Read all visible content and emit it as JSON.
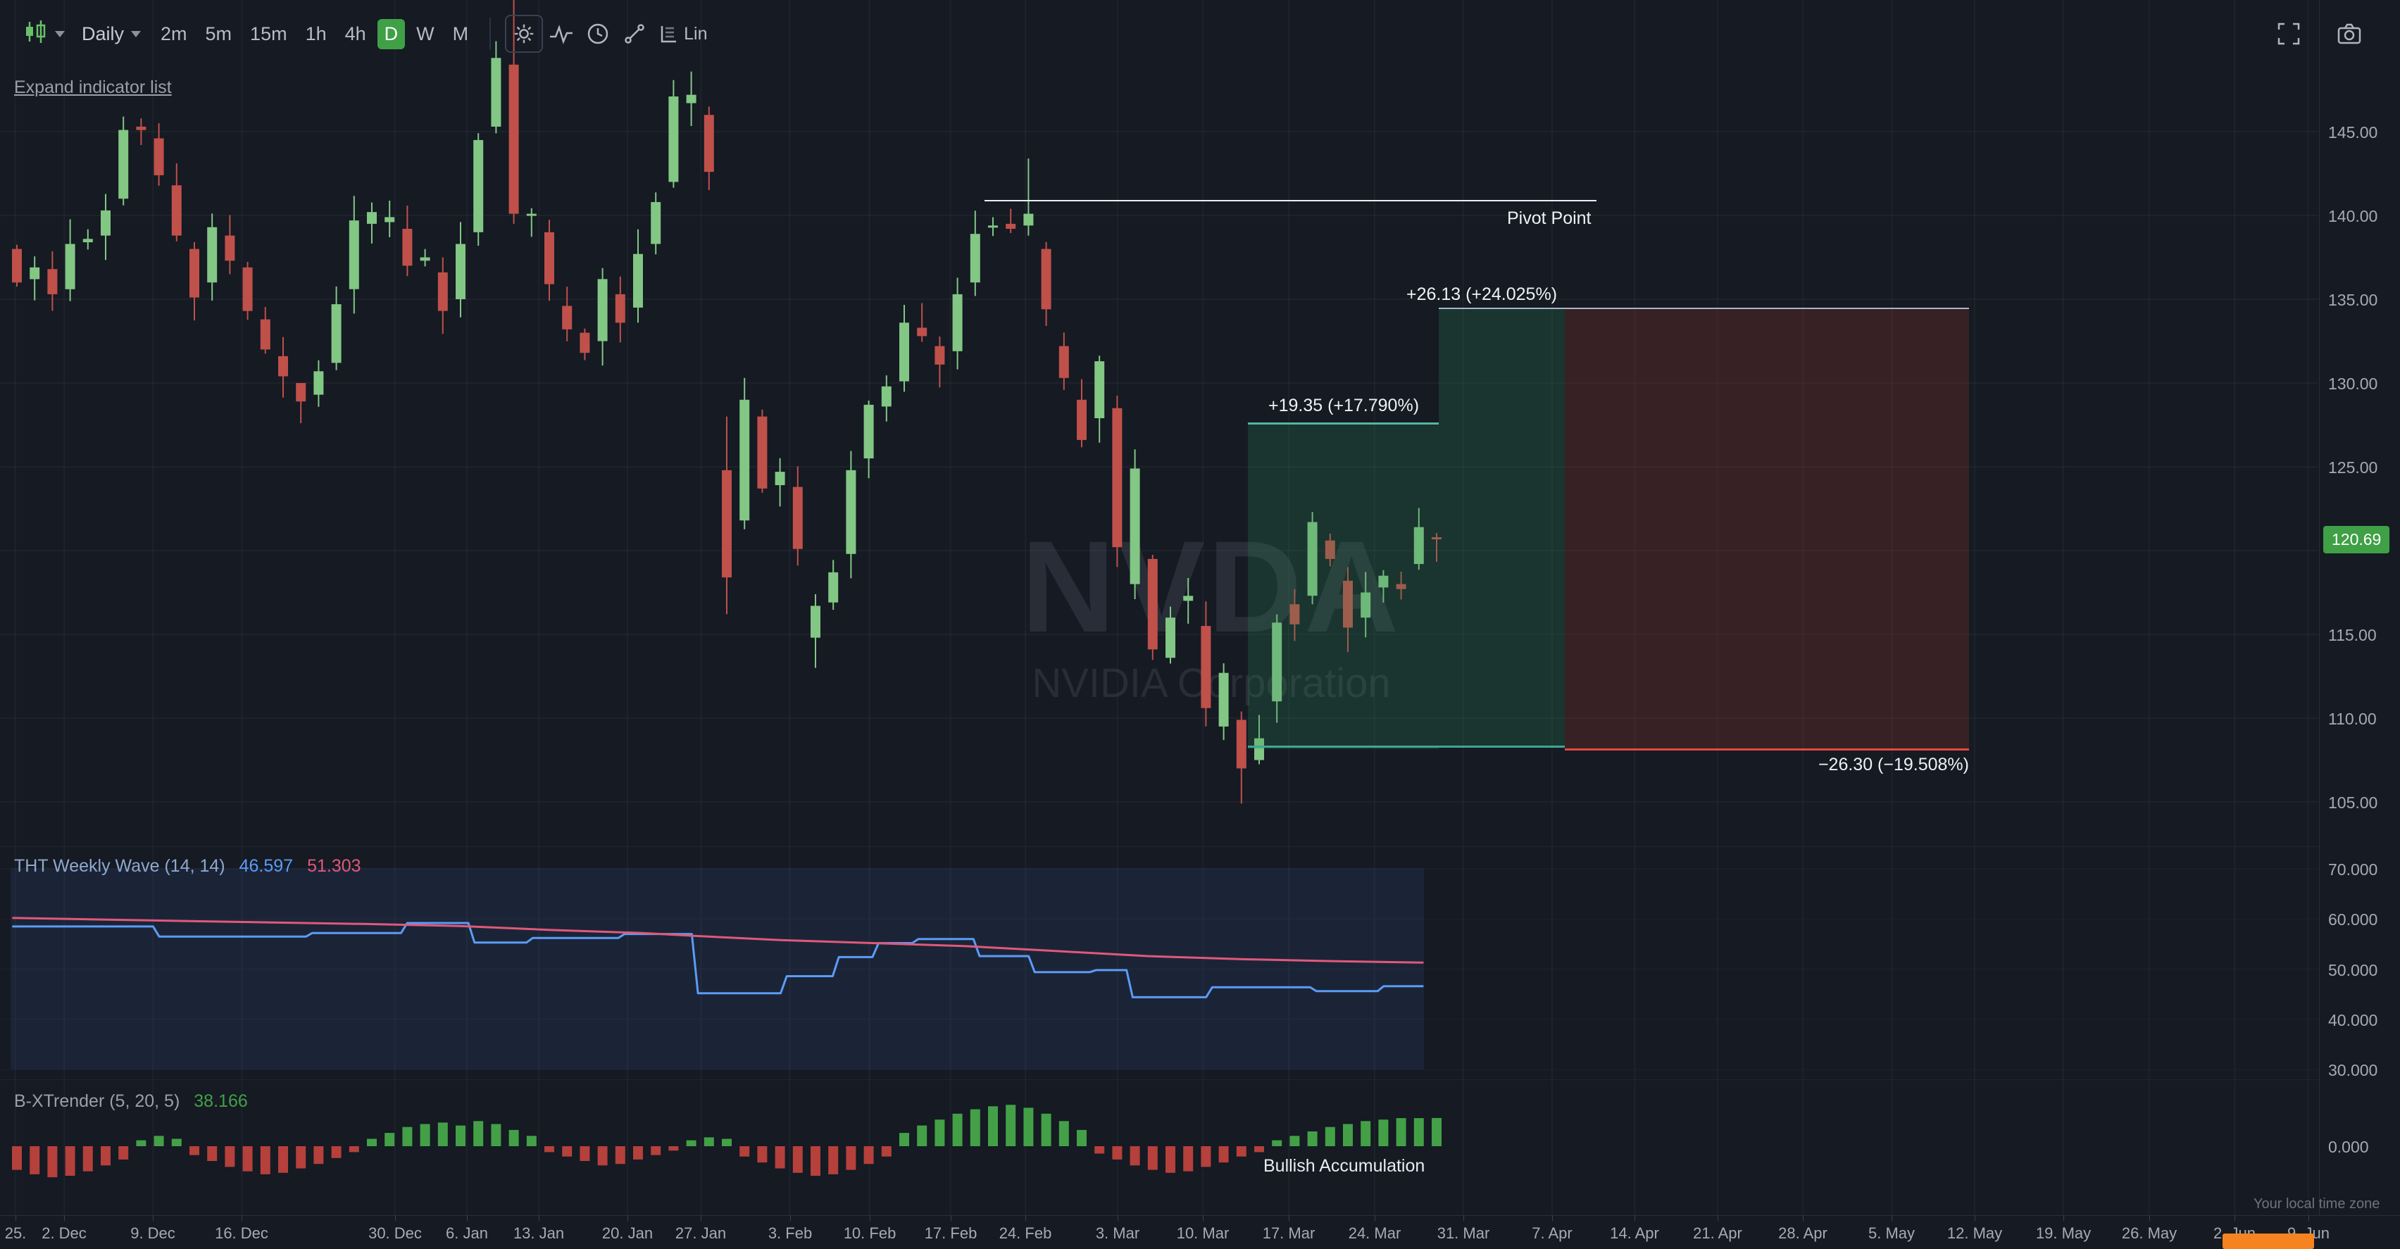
{
  "colors": {
    "up": "#82c784",
    "down": "#c0504a",
    "badge": "#3fa046",
    "wave": "#5b9cf6",
    "signal": "#e0597a",
    "bxt_up": "#43a047",
    "bxt_down": "#b5403c",
    "profit_fill": "rgba(46,139,87,0.24)",
    "loss_fill": "rgba(160,55,48,0.26)",
    "grid": "rgba(140,147,162,0.07)"
  },
  "toolbar": {
    "interval_select": {
      "value": "Daily"
    },
    "intervals": [
      {
        "label": "2m"
      },
      {
        "label": "5m"
      },
      {
        "label": "15m"
      },
      {
        "label": "1h"
      },
      {
        "label": "4h"
      },
      {
        "label": "D",
        "active": true
      },
      {
        "label": "W"
      },
      {
        "label": "M"
      }
    ],
    "scale_button": {
      "label": "Lin"
    }
  },
  "expand_link": "Expand indicator list",
  "watermark": {
    "ticker": "NVDA",
    "name": "NVIDIA Corporation"
  },
  "drawings": {
    "pivot_label": "Pivot Point",
    "profit_small_label": "+19.35 (+17.790%)",
    "profit_large_label": "+26.13 (+24.025%)",
    "loss_label": "−26.30 (−19.508%)"
  },
  "price_axis": {
    "labels": [
      [
        "145.00",
        145
      ],
      [
        "140.00",
        140
      ],
      [
        "135.00",
        135
      ],
      [
        "130.00",
        130
      ],
      [
        "125.00",
        125
      ],
      [
        "115.00",
        115
      ],
      [
        "110.00",
        110
      ],
      [
        "105.00",
        105
      ]
    ],
    "last_price_badge": "120.69"
  },
  "panels": {
    "tht": {
      "title": "THT Weekly Wave (14, 14)",
      "value_wave": "46.597",
      "value_signal": "51.303",
      "axis_labels": [
        [
          "70.000",
          70
        ],
        [
          "60.000",
          60
        ],
        [
          "50.000",
          50
        ],
        [
          "40.000",
          40
        ],
        [
          "30.000",
          30
        ]
      ]
    },
    "bxt": {
      "title": "B-XTrender (5, 20, 5)",
      "value": "38.166",
      "annotation": "Bullish Accumulation",
      "axis_labels": [
        [
          "0.000",
          0
        ]
      ]
    }
  },
  "time_axis": {
    "labels": [
      [
        "25.",
        10
      ],
      [
        "2. Dec",
        42
      ],
      [
        "9. Dec",
        100
      ],
      [
        "16. Dec",
        158
      ],
      [
        "30. Dec",
        258
      ],
      [
        "6. Jan",
        305
      ],
      [
        "13. Jan",
        352
      ],
      [
        "20. Jan",
        410
      ],
      [
        "27. Jan",
        458
      ],
      [
        "3. Feb",
        516
      ],
      [
        "10. Feb",
        568
      ],
      [
        "17. Feb",
        621
      ],
      [
        "24. Feb",
        670
      ],
      [
        "3. Mar",
        730
      ],
      [
        "10. Mar",
        786
      ],
      [
        "17. Mar",
        842
      ],
      [
        "24. Mar",
        898
      ],
      [
        "31. Mar",
        956
      ],
      [
        "7. Apr",
        1014
      ],
      [
        "14. Apr",
        1068
      ],
      [
        "21. Apr",
        1122
      ],
      [
        "28. Apr",
        1178
      ],
      [
        "5. May",
        1236
      ],
      [
        "12. May",
        1290
      ],
      [
        "19. May",
        1348
      ],
      [
        "26. May",
        1404
      ],
      [
        "2. Jun",
        1460
      ],
      [
        "9. Jun",
        1508
      ]
    ],
    "timezone_note": "Your local time zone"
  },
  "chart_data": [
    {
      "type": "candlestick",
      "name": "NVDA Daily",
      "last_price": 120.69,
      "ylim": [
        103,
        153
      ],
      "candles": [
        [
          138.0,
          136.0
        ],
        [
          136.2,
          136.9
        ],
        [
          136.8,
          135.3
        ],
        [
          135.6,
          138.3
        ],
        [
          138.4,
          138.6
        ],
        [
          138.8,
          140.3
        ],
        [
          141.0,
          145.1,
          145.9,
          140.6
        ],
        [
          145.3,
          145.1
        ],
        [
          144.6,
          142.4
        ],
        [
          141.8,
          138.8
        ],
        [
          138.0,
          135.1
        ],
        [
          136.0,
          139.3
        ],
        [
          138.8,
          137.3
        ],
        [
          136.9,
          134.3
        ],
        [
          133.8,
          132.0
        ],
        [
          131.6,
          130.4
        ],
        [
          130.0,
          128.9,
          129.6,
          127.6
        ],
        [
          129.3,
          130.7
        ],
        [
          131.2,
          134.7
        ],
        [
          135.6,
          139.7
        ],
        [
          139.5,
          140.2
        ],
        [
          139.6,
          139.9
        ],
        [
          139.2,
          137.0
        ],
        [
          137.3,
          137.5
        ],
        [
          136.6,
          134.3
        ],
        [
          135.0,
          138.3
        ],
        [
          139.0,
          144.5
        ],
        [
          145.3,
          149.4,
          150.4,
          144.9
        ],
        [
          149.0,
          140.1,
          153.2,
          139.5
        ],
        [
          140.0,
          140.1
        ],
        [
          139.0,
          135.9
        ],
        [
          134.6,
          133.2
        ],
        [
          133.0,
          131.8
        ],
        [
          132.5,
          136.2
        ],
        [
          135.3,
          133.6
        ],
        [
          134.5,
          137.7
        ],
        [
          138.3,
          140.8
        ],
        [
          142.0,
          147.1
        ],
        [
          146.7,
          147.2
        ],
        [
          146.0,
          142.6
        ],
        [
          124.8,
          118.4,
          128.0,
          116.2
        ],
        [
          121.8,
          129.0
        ],
        [
          128.0,
          123.7
        ],
        [
          123.9,
          124.7
        ],
        [
          123.8,
          120.1
        ],
        [
          114.8,
          116.7,
          117.4,
          113.0
        ],
        [
          116.9,
          118.7
        ],
        [
          119.8,
          124.8
        ],
        [
          125.5,
          128.7
        ],
        [
          128.6,
          129.8
        ],
        [
          130.1,
          133.6
        ],
        [
          133.3,
          132.8
        ],
        [
          132.2,
          131.1
        ],
        [
          131.9,
          135.3
        ],
        [
          136.0,
          138.9
        ],
        [
          139.3,
          139.4
        ],
        [
          139.5,
          139.2
        ],
        [
          139.4,
          140.1,
          143.4,
          138.8
        ],
        [
          138.0,
          134.4
        ],
        [
          132.2,
          130.3
        ],
        [
          129.0,
          126.6
        ],
        [
          127.9,
          131.3
        ],
        [
          128.5,
          120.2
        ],
        [
          118.0,
          124.9
        ],
        [
          119.5,
          114.1
        ],
        [
          113.6,
          116.0
        ],
        [
          117.0,
          117.3
        ],
        [
          115.5,
          110.6
        ],
        [
          109.5,
          112.7
        ],
        [
          109.9,
          107.0,
          110.4,
          104.9
        ],
        [
          107.5,
          108.8
        ],
        [
          111.0,
          115.7
        ],
        [
          116.8,
          115.6
        ],
        [
          117.3,
          121.7,
          122.3,
          116.8
        ],
        [
          120.6,
          119.5
        ],
        [
          118.2,
          115.4
        ],
        [
          116.0,
          117.5
        ],
        [
          117.8,
          118.5
        ],
        [
          118.0,
          117.7
        ],
        [
          119.2,
          121.4
        ],
        [
          120.8,
          120.69
        ]
      ]
    },
    {
      "type": "line",
      "name": "THT Weekly Wave (14, 14)",
      "ylim": [
        30,
        70
      ],
      "legend_position": "top-left",
      "series": [
        {
          "name": "wave",
          "current": 46.597,
          "color": "#5b9cf6",
          "points": [
            [
              8,
              58.5
            ],
            [
              100,
              58.5
            ],
            [
              104,
              56.5
            ],
            [
              200,
              56.5
            ],
            [
              204,
              57.2
            ],
            [
              262,
              57.2
            ],
            [
              266,
              59.2
            ],
            [
              306,
              59.2
            ],
            [
              310,
              55.3
            ],
            [
              344,
              55.3
            ],
            [
              348,
              56.2
            ],
            [
              404,
              56.2
            ],
            [
              408,
              57.0
            ],
            [
              452,
              57.0
            ],
            [
              456,
              45.2
            ],
            [
              510,
              45.2
            ],
            [
              514,
              48.6
            ],
            [
              544,
              48.6
            ],
            [
              548,
              52.4
            ],
            [
              570,
              52.4
            ],
            [
              574,
              55.2
            ],
            [
              596,
              55.2
            ],
            [
              600,
              56.0
            ],
            [
              636,
              56.0
            ],
            [
              640,
              52.6
            ],
            [
              672,
              52.6
            ],
            [
              676,
              49.4
            ],
            [
              712,
              49.4
            ],
            [
              716,
              49.8
            ],
            [
              736,
              49.8
            ],
            [
              740,
              44.4
            ],
            [
              788,
              44.4
            ],
            [
              792,
              46.4
            ],
            [
              856,
              46.4
            ],
            [
              860,
              45.6
            ],
            [
              900,
              45.6
            ],
            [
              904,
              46.6
            ],
            [
              930,
              46.6
            ]
          ]
        },
        {
          "name": "signal",
          "current": 51.303,
          "color": "#e0597a",
          "points": [
            [
              8,
              60.2
            ],
            [
              120,
              59.6
            ],
            [
              240,
              59.0
            ],
            [
              300,
              58.6
            ],
            [
              360,
              57.8
            ],
            [
              420,
              57.2
            ],
            [
              456,
              56.6
            ],
            [
              510,
              55.8
            ],
            [
              570,
              55.2
            ],
            [
              630,
              54.6
            ],
            [
              690,
              53.6
            ],
            [
              750,
              52.6
            ],
            [
              810,
              52.0
            ],
            [
              870,
              51.6
            ],
            [
              930,
              51.3
            ]
          ]
        }
      ]
    },
    {
      "type": "bar",
      "name": "B-XTrender (5, 20, 5)",
      "current": 38.166,
      "values": [
        -32,
        -38,
        -42,
        -40,
        -34,
        -26,
        -18,
        8,
        14,
        10,
        -12,
        -20,
        -28,
        -34,
        -38,
        -36,
        -30,
        -24,
        -16,
        -8,
        10,
        18,
        26,
        30,
        32,
        28,
        34,
        30,
        22,
        14,
        -8,
        -14,
        -20,
        -26,
        -24,
        -18,
        -12,
        -6,
        8,
        12,
        10,
        -14,
        -22,
        -30,
        -36,
        -40,
        -38,
        -32,
        -24,
        -14,
        18,
        28,
        36,
        44,
        50,
        54,
        56,
        52,
        44,
        34,
        22,
        -10,
        -18,
        -26,
        -32,
        -36,
        -34,
        -28,
        -22,
        -14,
        -8,
        8,
        14,
        20,
        26,
        30,
        34,
        36,
        38,
        38,
        38.166
      ]
    }
  ]
}
